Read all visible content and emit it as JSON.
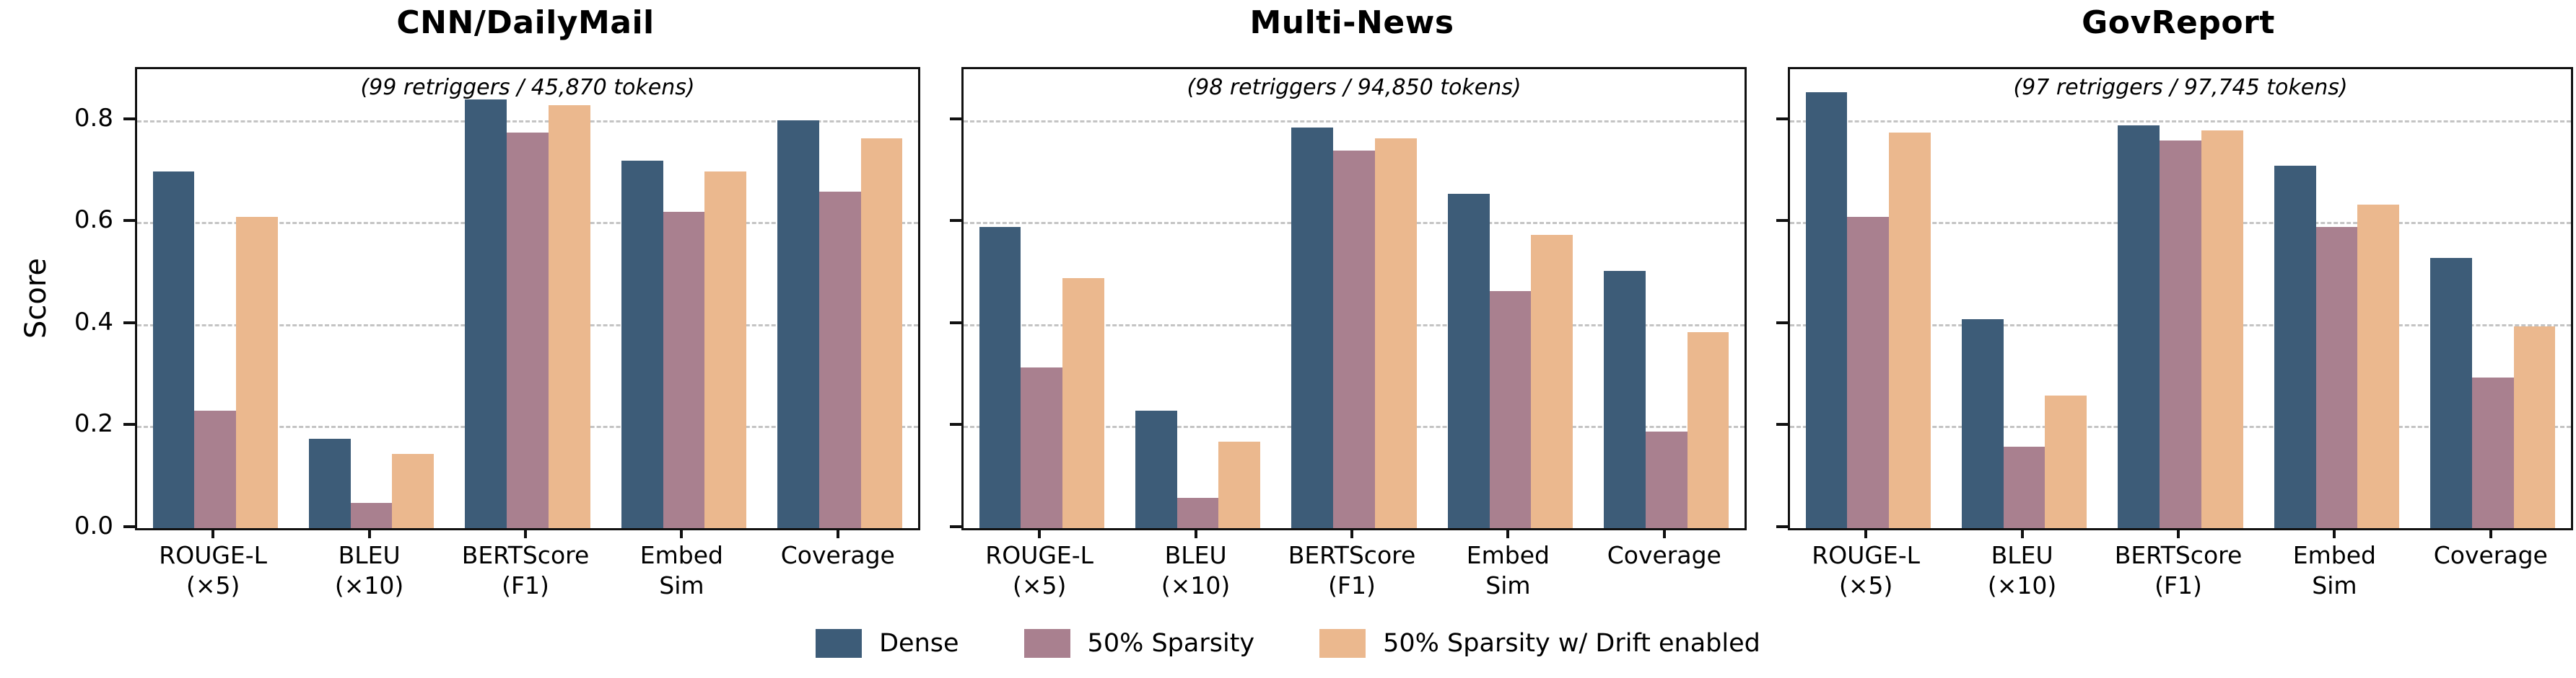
{
  "figure": {
    "ylabel": "Score",
    "ylim": [
      0,
      0.9
    ],
    "yticks": [
      0.0,
      0.2,
      0.4,
      0.6,
      0.8
    ],
    "ytick_labels": [
      "0.0",
      "0.2",
      "0.4",
      "0.6",
      "0.8"
    ],
    "grid": true,
    "legend_position": "bottom-center",
    "colors": {
      "dense": "#3D5C78",
      "sparsity": "#A9808F",
      "drift": "#EBB88E",
      "gridline": "#c4c4c4",
      "spine": "#111111"
    },
    "legend": [
      {
        "label": "Dense",
        "color": "#3D5C78"
      },
      {
        "label": "50% Sparsity",
        "color": "#A9808F"
      },
      {
        "label": "50% Sparsity w/ Drift enabled",
        "color": "#EBB88E"
      }
    ]
  },
  "chart_data": [
    {
      "type": "bar",
      "title": "CNN/DailyMail",
      "annotation": "(99 retriggers / 45,870 tokens)",
      "categories": [
        "ROUGE-L\n(×5)",
        "BLEU\n(×10)",
        "BERTScore\n(F1)",
        "Embed\nSim",
        "Coverage"
      ],
      "series": [
        {
          "name": "Dense",
          "values": [
            0.7,
            0.175,
            0.84,
            0.72,
            0.8
          ]
        },
        {
          "name": "50% Sparsity",
          "values": [
            0.23,
            0.05,
            0.775,
            0.62,
            0.66
          ]
        },
        {
          "name": "50% Sparsity w/ Drift enabled",
          "values": [
            0.61,
            0.145,
            0.83,
            0.7,
            0.765
          ]
        }
      ],
      "xlabel": "",
      "ylabel": "Score",
      "ylim": [
        0,
        0.9
      ]
    },
    {
      "type": "bar",
      "title": "Multi-News",
      "annotation": "(98 retriggers / 94,850 tokens)",
      "categories": [
        "ROUGE-L\n(×5)",
        "BLEU\n(×10)",
        "BERTScore\n(F1)",
        "Embed\nSim",
        "Coverage"
      ],
      "series": [
        {
          "name": "Dense",
          "values": [
            0.59,
            0.23,
            0.785,
            0.655,
            0.505
          ]
        },
        {
          "name": "50% Sparsity",
          "values": [
            0.315,
            0.06,
            0.74,
            0.465,
            0.19
          ]
        },
        {
          "name": "50% Sparsity w/ Drift enabled",
          "values": [
            0.49,
            0.17,
            0.765,
            0.575,
            0.385
          ]
        }
      ],
      "xlabel": "",
      "ylabel": "",
      "ylim": [
        0,
        0.9
      ]
    },
    {
      "type": "bar",
      "title": "GovReport",
      "annotation": "(97 retriggers / 97,745 tokens)",
      "categories": [
        "ROUGE-L\n(×5)",
        "BLEU\n(×10)",
        "BERTScore\n(F1)",
        "Embed\nSim",
        "Coverage"
      ],
      "series": [
        {
          "name": "Dense",
          "values": [
            0.855,
            0.41,
            0.79,
            0.71,
            0.53
          ]
        },
        {
          "name": "50% Sparsity",
          "values": [
            0.61,
            0.16,
            0.76,
            0.59,
            0.295
          ]
        },
        {
          "name": "50% Sparsity w/ Drift enabled",
          "values": [
            0.775,
            0.26,
            0.78,
            0.635,
            0.395
          ]
        }
      ],
      "xlabel": "",
      "ylabel": "",
      "ylim": [
        0,
        0.9
      ]
    }
  ]
}
